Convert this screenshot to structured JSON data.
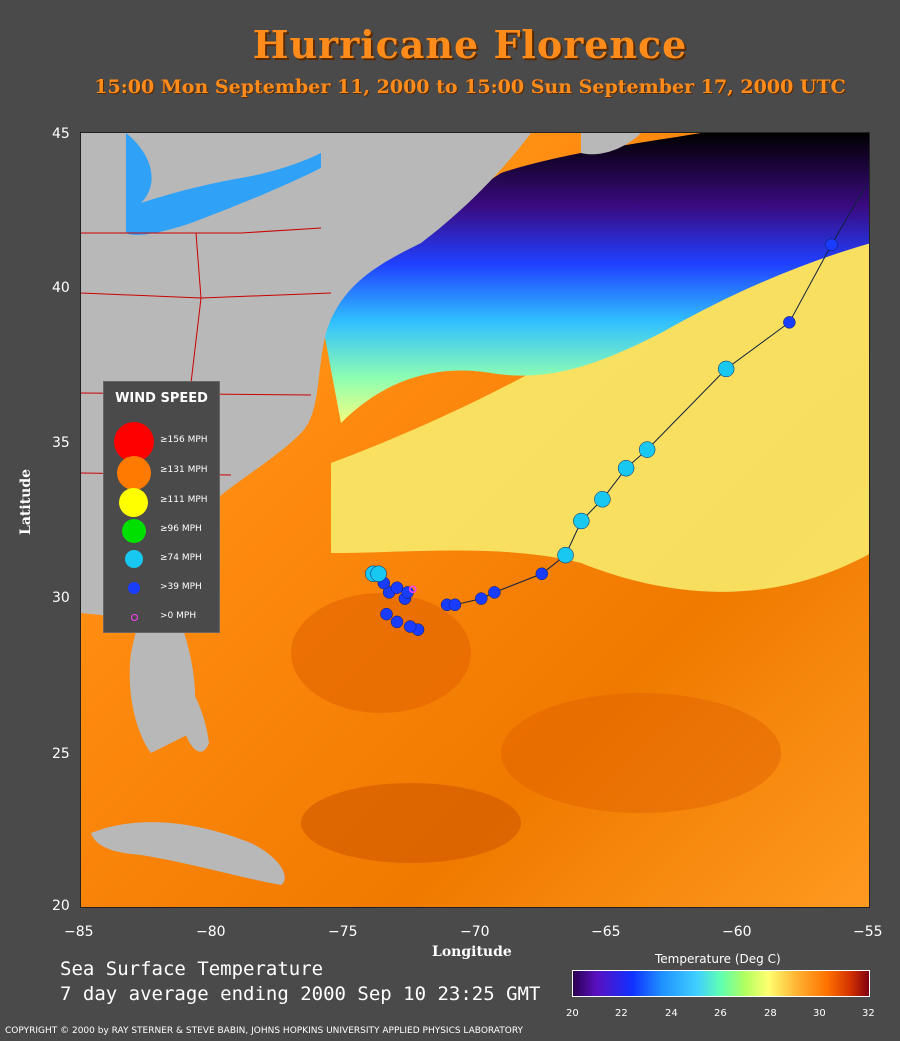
{
  "title": "Hurricane Florence",
  "subtitle": "15:00 Mon September 11, 2000 to 15:00 Sun September 17, 2000  UTC",
  "axes": {
    "ylabel": "Latitude",
    "xlabel": "Longitude",
    "lat_ticks": [
      "45",
      "40",
      "35",
      "30",
      "25",
      "20"
    ],
    "lon_ticks": [
      "−85",
      "−80",
      "−75",
      "−70",
      "−65",
      "−60",
      "−55"
    ]
  },
  "legend": {
    "title": "WIND SPEED",
    "items": [
      {
        "label": "≥156 MPH",
        "color": "#ff0000"
      },
      {
        "label": "≥131 MPH",
        "color": "#ff7a00"
      },
      {
        "label": "≥111 MPH",
        "color": "#ffff00"
      },
      {
        "label": "≥96 MPH",
        "color": "#00e000"
      },
      {
        "label": "≥74 MPH",
        "color": "#18c8f0"
      },
      {
        "label": ">39 MPH",
        "color": "#1a3cff"
      },
      {
        "label": ">0 MPH",
        "color": "#ff40ff"
      }
    ]
  },
  "sst_caption": {
    "line1": "Sea Surface Temperature",
    "line2": "7 day average ending 2000 Sep 10 23:25 GMT"
  },
  "colorbar": {
    "title": "Temperature (Deg C)",
    "ticks": [
      "20",
      "22",
      "24",
      "26",
      "28",
      "30",
      "32"
    ]
  },
  "copyright": "COPYRIGHT © 2000 by RAY STERNER & STEVE BABIN, JOHNS HOPKINS UNIVERSITY APPLIED PHYSICS LABORATORY",
  "track": {
    "points": [
      {
        "lon": -72.2,
        "lat": 29.0,
        "cat": ">39"
      },
      {
        "lon": -72.5,
        "lat": 29.1,
        "cat": ">39"
      },
      {
        "lon": -73.0,
        "lat": 29.25,
        "cat": ">39"
      },
      {
        "lon": -73.4,
        "lat": 29.5,
        "cat": ">39"
      },
      {
        "lon": -72.7,
        "lat": 30.0,
        "cat": ">39"
      },
      {
        "lon": -72.6,
        "lat": 30.2,
        "cat": ">39"
      },
      {
        "lon": -73.3,
        "lat": 30.2,
        "cat": ">39"
      },
      {
        "lon": -73.0,
        "lat": 30.35,
        "cat": ">39"
      },
      {
        "lon": -72.4,
        "lat": 30.3,
        "cat": ">0"
      },
      {
        "lon": -73.5,
        "lat": 30.5,
        "cat": ">39"
      },
      {
        "lon": -73.9,
        "lat": 30.8,
        "cat": ">=74"
      },
      {
        "lon": -73.7,
        "lat": 30.8,
        "cat": ">=74"
      },
      {
        "lon": -71.1,
        "lat": 29.8,
        "cat": ">39"
      },
      {
        "lon": -70.8,
        "lat": 29.8,
        "cat": ">39"
      },
      {
        "lon": -69.8,
        "lat": 30.0,
        "cat": ">39"
      },
      {
        "lon": -69.3,
        "lat": 30.2,
        "cat": ">39"
      },
      {
        "lon": -67.5,
        "lat": 30.8,
        "cat": ">39"
      },
      {
        "lon": -66.6,
        "lat": 31.4,
        "cat": ">=74"
      },
      {
        "lon": -66.0,
        "lat": 32.5,
        "cat": ">=74"
      },
      {
        "lon": -65.2,
        "lat": 33.2,
        "cat": ">=74"
      },
      {
        "lon": -64.3,
        "lat": 34.2,
        "cat": ">=74"
      },
      {
        "lon": -63.5,
        "lat": 34.8,
        "cat": ">=74"
      },
      {
        "lon": -60.5,
        "lat": 37.4,
        "cat": ">=74"
      },
      {
        "lon": -58.1,
        "lat": 38.9,
        "cat": ">39"
      },
      {
        "lon": -56.5,
        "lat": 41.4,
        "cat": ">39"
      }
    ]
  }
}
